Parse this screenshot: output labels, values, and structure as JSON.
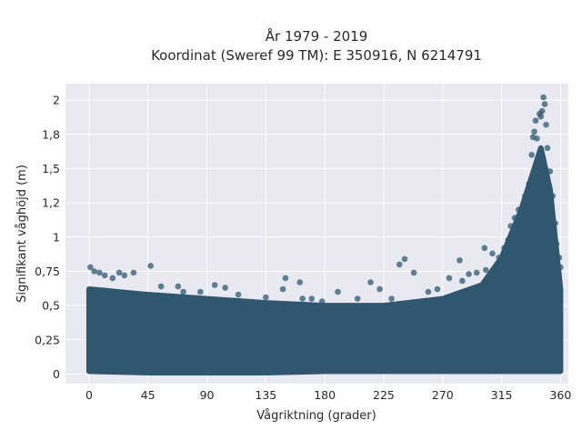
{
  "chart_data": {
    "type": "scatter",
    "title_line1": "År 1979 - 2019",
    "title_line2": "Koordinat (Sweref 99 TM): E 350916, N 6214791",
    "xlabel": "Vågriktning (grader)",
    "ylabel": "Signifikant våghöjd (m)",
    "xlim": [
      -18,
      366
    ],
    "ylim": [
      -0.07,
      2.12
    ],
    "xticks": [
      0,
      45,
      90,
      135,
      180,
      225,
      270,
      315,
      360
    ],
    "xtick_labels": [
      "0",
      "45",
      "90",
      "135",
      "180",
      "225",
      "270",
      "315",
      "360"
    ],
    "yticks": [
      0,
      0.25,
      0.5,
      0.75,
      1,
      1.25,
      1.5,
      1.75,
      2
    ],
    "ytick_labels": [
      "0",
      "0,25",
      "0,5",
      "0,75",
      "1",
      "1,2",
      "1,5",
      "1,8",
      "2"
    ],
    "grid": true,
    "legend": "none",
    "marker_color": "#2f5870",
    "plot_bgcolor": "#e8e9f1",
    "band": [
      {
        "x": 0,
        "ymin": 0.02,
        "ymax": 0.62
      },
      {
        "x": 45,
        "ymin": 0.01,
        "ymax": 0.58
      },
      {
        "x": 90,
        "ymin": 0.01,
        "ymax": 0.55
      },
      {
        "x": 135,
        "ymin": 0.01,
        "ymax": 0.52
      },
      {
        "x": 180,
        "ymin": 0.02,
        "ymax": 0.5
      },
      {
        "x": 225,
        "ymin": 0.02,
        "ymax": 0.5
      },
      {
        "x": 270,
        "ymin": 0.02,
        "ymax": 0.55
      },
      {
        "x": 300,
        "ymin": 0.02,
        "ymax": 0.65
      },
      {
        "x": 315,
        "ymin": 0.02,
        "ymax": 0.85
      },
      {
        "x": 330,
        "ymin": 0.02,
        "ymax": 1.2
      },
      {
        "x": 340,
        "ymin": 0.02,
        "ymax": 1.5
      },
      {
        "x": 345,
        "ymin": 0.02,
        "ymax": 1.65
      },
      {
        "x": 352,
        "ymin": 0.02,
        "ymax": 1.35
      },
      {
        "x": 360,
        "ymin": 0.02,
        "ymax": 0.62
      }
    ],
    "points": [
      {
        "x": 1,
        "y": 0.78
      },
      {
        "x": 4,
        "y": 0.75
      },
      {
        "x": 8,
        "y": 0.74
      },
      {
        "x": 12,
        "y": 0.72
      },
      {
        "x": 18,
        "y": 0.7
      },
      {
        "x": 23,
        "y": 0.74
      },
      {
        "x": 27,
        "y": 0.72
      },
      {
        "x": 34,
        "y": 0.74
      },
      {
        "x": 47,
        "y": 0.79
      },
      {
        "x": 55,
        "y": 0.64
      },
      {
        "x": 68,
        "y": 0.64
      },
      {
        "x": 72,
        "y": 0.6
      },
      {
        "x": 85,
        "y": 0.6
      },
      {
        "x": 96,
        "y": 0.65
      },
      {
        "x": 104,
        "y": 0.63
      },
      {
        "x": 114,
        "y": 0.58
      },
      {
        "x": 135,
        "y": 0.56
      },
      {
        "x": 148,
        "y": 0.62
      },
      {
        "x": 150,
        "y": 0.7
      },
      {
        "x": 161,
        "y": 0.67
      },
      {
        "x": 163,
        "y": 0.55
      },
      {
        "x": 170,
        "y": 0.55
      },
      {
        "x": 178,
        "y": 0.53
      },
      {
        "x": 190,
        "y": 0.6
      },
      {
        "x": 205,
        "y": 0.55
      },
      {
        "x": 215,
        "y": 0.67
      },
      {
        "x": 222,
        "y": 0.62
      },
      {
        "x": 231,
        "y": 0.55
      },
      {
        "x": 237,
        "y": 0.8
      },
      {
        "x": 241,
        "y": 0.84
      },
      {
        "x": 248,
        "y": 0.74
      },
      {
        "x": 259,
        "y": 0.6
      },
      {
        "x": 266,
        "y": 0.62
      },
      {
        "x": 275,
        "y": 0.7
      },
      {
        "x": 283,
        "y": 0.83
      },
      {
        "x": 285,
        "y": 0.68
      },
      {
        "x": 290,
        "y": 0.73
      },
      {
        "x": 296,
        "y": 0.74
      },
      {
        "x": 302,
        "y": 0.92
      },
      {
        "x": 303,
        "y": 0.76
      },
      {
        "x": 308,
        "y": 0.88
      },
      {
        "x": 313,
        "y": 0.85
      },
      {
        "x": 317,
        "y": 0.92
      },
      {
        "x": 320,
        "y": 0.98
      },
      {
        "x": 322,
        "y": 1.08
      },
      {
        "x": 325,
        "y": 1.14
      },
      {
        "x": 328,
        "y": 1.2
      },
      {
        "x": 333,
        "y": 1.3
      },
      {
        "x": 336,
        "y": 1.39
      },
      {
        "x": 338,
        "y": 1.6
      },
      {
        "x": 339,
        "y": 1.73
      },
      {
        "x": 340,
        "y": 1.77
      },
      {
        "x": 341,
        "y": 1.85
      },
      {
        "x": 342,
        "y": 1.72
      },
      {
        "x": 343,
        "y": 1.56
      },
      {
        "x": 344,
        "y": 1.9
      },
      {
        "x": 345,
        "y": 1.88
      },
      {
        "x": 346,
        "y": 1.92
      },
      {
        "x": 347,
        "y": 2.02
      },
      {
        "x": 348,
        "y": 1.97
      },
      {
        "x": 349,
        "y": 1.82
      },
      {
        "x": 350,
        "y": 1.65
      },
      {
        "x": 352,
        "y": 1.48
      },
      {
        "x": 354,
        "y": 1.3
      },
      {
        "x": 356,
        "y": 1.1
      },
      {
        "x": 357,
        "y": 0.95
      },
      {
        "x": 359,
        "y": 0.85
      },
      {
        "x": 360,
        "y": 0.78
      }
    ]
  }
}
